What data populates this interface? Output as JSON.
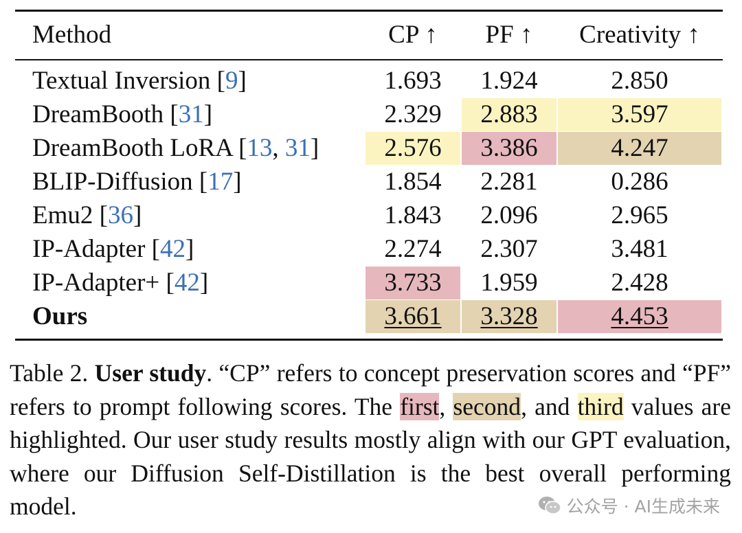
{
  "table": {
    "columns": {
      "method": "Method",
      "cp": "CP ↑",
      "pf": "PF ↑",
      "creativity": "Creativity ↑"
    },
    "rows": [
      {
        "method": "Textual Inversion ",
        "refs": [
          "9"
        ],
        "cp": "1.693",
        "pf": "1.924",
        "creativity": "2.850",
        "highlight": {
          "cp": null,
          "pf": null,
          "creativity": null
        }
      },
      {
        "method": "DreamBooth ",
        "refs": [
          "31"
        ],
        "cp": "2.329",
        "pf": "2.883",
        "creativity": "3.597",
        "highlight": {
          "cp": null,
          "pf": "third",
          "creativity": "third"
        }
      },
      {
        "method": "DreamBooth LoRA ",
        "refs": [
          "13",
          "31"
        ],
        "cp": "2.576",
        "pf": "3.386",
        "creativity": "4.247",
        "highlight": {
          "cp": "third",
          "pf": "first",
          "creativity": "second"
        }
      },
      {
        "method": "BLIP-Diffusion ",
        "refs": [
          "17"
        ],
        "cp": "1.854",
        "pf": "2.281",
        "creativity": "0.286",
        "highlight": {
          "cp": null,
          "pf": null,
          "creativity": null
        }
      },
      {
        "method": "Emu2 ",
        "refs": [
          "36"
        ],
        "cp": "1.843",
        "pf": "2.096",
        "creativity": "2.965",
        "highlight": {
          "cp": null,
          "pf": null,
          "creativity": null
        }
      },
      {
        "method": "IP-Adapter ",
        "refs": [
          "42"
        ],
        "cp": "2.274",
        "pf": "2.307",
        "creativity": "3.481",
        "highlight": {
          "cp": null,
          "pf": null,
          "creativity": null
        }
      },
      {
        "method": "IP-Adapter+ ",
        "refs": [
          "42"
        ],
        "cp": "3.733",
        "pf": "1.959",
        "creativity": "2.428",
        "highlight": {
          "cp": "first",
          "pf": null,
          "creativity": null
        }
      },
      {
        "method": "Ours",
        "refs": [],
        "bold": true,
        "underline": true,
        "cp": "3.661",
        "pf": "3.328",
        "creativity": "4.453",
        "highlight": {
          "cp": "second",
          "pf": "second",
          "creativity": "first"
        }
      }
    ]
  },
  "caption": {
    "label": "Table 2. ",
    "title": "User study",
    "part1": ". “CP” refers to concept preservation scores and “PF” refers to prompt following scores. The ",
    "first": "first",
    "sep1": ", ",
    "second": "second",
    "sep2": ", and ",
    "third": "third",
    "part2": " values are highlighted. Our user study results mostly align with our GPT evaluation, where our Diffusion Self-Distillation is the best overall performing model."
  },
  "watermark": {
    "text": "公众号 · AI生成未来",
    "icon": "wechat-icon"
  },
  "colors": {
    "first": "#e6b8bd",
    "second": "#e3d3b1",
    "third": "#fbf4c1",
    "ref": "#3b6fb6"
  }
}
